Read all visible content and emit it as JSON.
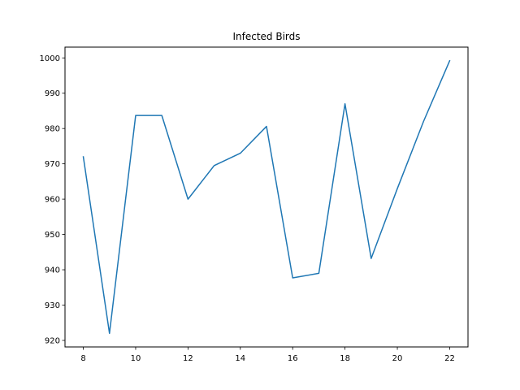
{
  "chart_data": {
    "type": "line",
    "title": "Infected Birds",
    "xlabel": "",
    "ylabel": "",
    "x": [
      8,
      9,
      10,
      11,
      12,
      13,
      14,
      15,
      16,
      17,
      18,
      19,
      20,
      21,
      22
    ],
    "series": [
      {
        "values": [
          972.0,
          922.0,
          983.7,
          983.7,
          960.0,
          969.5,
          973.0,
          980.6,
          937.7,
          939.0,
          987.0,
          943.2,
          963.0,
          982.0,
          999.2
        ],
        "color": "#1f77b4"
      }
    ],
    "xlim": [
      7.3,
      22.7
    ],
    "ylim": [
      918.15,
      1003.05
    ],
    "xticks": [
      8,
      10,
      12,
      14,
      16,
      18,
      20,
      22
    ],
    "yticks": [
      920,
      930,
      940,
      950,
      960,
      970,
      980,
      990,
      1000
    ],
    "grid": false
  }
}
